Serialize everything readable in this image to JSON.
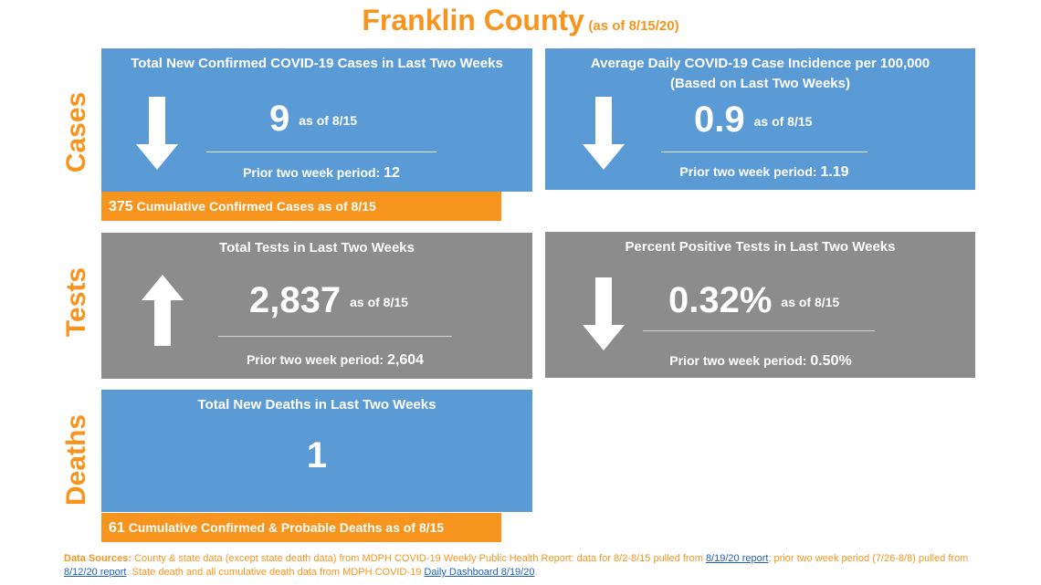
{
  "header": {
    "title": "Franklin County",
    "subtitle": "(as of 8/15/20)"
  },
  "sections": {
    "cases": "Cases",
    "tests": "Tests",
    "deaths": "Deaths"
  },
  "cards": {
    "new_cases": {
      "heading": "Total New Confirmed COVID-19 Cases in Last Two Weeks",
      "value": "9",
      "as_of": "as of 8/15",
      "prior_label": "Prior two week period:",
      "prior_value": "12",
      "trend": "down"
    },
    "incidence": {
      "heading_line1": "Average Daily COVID-19 Case Incidence per 100,000",
      "heading_line2": "(Based on Last Two Weeks)",
      "value": "0.9",
      "as_of": "as of 8/15",
      "prior_label": "Prior two week period:",
      "prior_value": "1.19",
      "trend": "down"
    },
    "tests": {
      "heading": "Total Tests in Last Two Weeks",
      "value": "2,837",
      "as_of": "as of 8/15",
      "prior_label": "Prior two week period:",
      "prior_value": "2,604",
      "trend": "up"
    },
    "percent_positive": {
      "heading": "Percent Positive Tests in Last Two Weeks",
      "value": "0.32%",
      "as_of": "as of 8/15",
      "prior_label": "Prior two week period:",
      "prior_value": "0.50%",
      "trend": "down"
    },
    "deaths": {
      "heading": "Total New Deaths in Last Two Weeks",
      "value": "1"
    }
  },
  "cumulative": {
    "cases_value": "375",
    "cases_label": "Cumulative Confirmed Cases as of 8/15",
    "deaths_value": "61",
    "deaths_label": "Cumulative Confirmed & Probable Deaths as of 8/15"
  },
  "sources": {
    "label": "Data Sources:",
    "text1": "County & state data (except state death data) from MDPH COVID-19 Weekly Public Health Report: data for 8/2-8/15  pulled from",
    "link1": "8/19/20 report",
    "text2": "; prior two week period (7/26-8/8)  pulled from",
    "link2": "8/12/20 report",
    "text3": ".  State death and all cumulative death data from MDPH COVID-19",
    "link3": "Daily Dashboard 8/19/20",
    "text4": "."
  },
  "colors": {
    "orange": "#f7941d",
    "blue": "#5b9bd5",
    "gray": "#8c8c8c"
  },
  "icons": {
    "down": "arrow-down-icon",
    "up": "arrow-up-icon"
  }
}
